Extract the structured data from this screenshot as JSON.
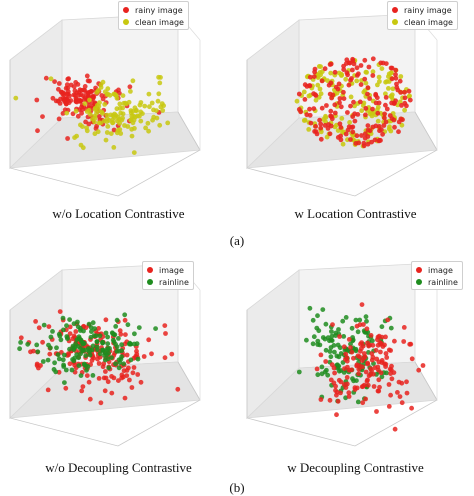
{
  "labels": {
    "a": "(a)",
    "b": "(b)"
  },
  "colors": {
    "red": "#e8231f",
    "yellow": "#c8c810",
    "green": "#1e8c1e"
  },
  "panels": [
    {
      "caption": "w/o Location Contrastive",
      "legend": [
        {
          "label": "rainy image",
          "color": "#e8231f"
        },
        {
          "label": "clean image",
          "color": "#c8c810"
        }
      ]
    },
    {
      "caption": "w Location Contrastive",
      "legend": [
        {
          "label": "rainy image",
          "color": "#e8231f"
        },
        {
          "label": "clean image",
          "color": "#c8c810"
        }
      ]
    },
    {
      "caption": "w/o Decoupling Contrastive",
      "legend": [
        {
          "label": "image",
          "color": "#e8231f"
        },
        {
          "label": "rainline",
          "color": "#1e8c1e"
        }
      ]
    },
    {
      "caption": "w Decoupling Contrastive",
      "legend": [
        {
          "label": "image",
          "color": "#e8231f"
        },
        {
          "label": "rainline",
          "color": "#1e8c1e"
        }
      ]
    }
  ]
}
